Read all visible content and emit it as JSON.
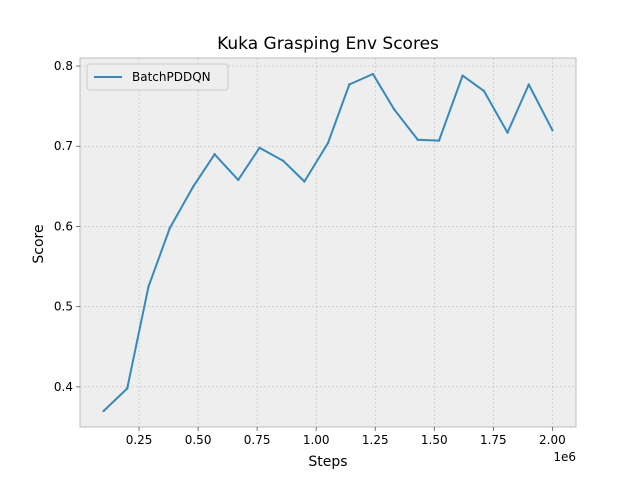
{
  "chart_data": {
    "type": "line",
    "title": "Kuka Grasping Env Scores",
    "xlabel": "Steps",
    "ylabel": "Score",
    "x_offset_label": "1e6",
    "xlim": [
      0.0,
      2.1
    ],
    "ylim": [
      0.35,
      0.81
    ],
    "x_ticks": [
      0.25,
      0.5,
      0.75,
      1.0,
      1.25,
      1.5,
      1.75,
      2.0
    ],
    "x_tick_labels": [
      "0.25",
      "0.50",
      "0.75",
      "1.00",
      "1.25",
      "1.50",
      "1.75",
      "2.00"
    ],
    "y_ticks": [
      0.4,
      0.5,
      0.6,
      0.7,
      0.8
    ],
    "y_tick_labels": [
      "0.4",
      "0.5",
      "0.6",
      "0.7",
      "0.8"
    ],
    "grid": true,
    "legend_position": "upper-left",
    "series": [
      {
        "name": "BatchPDDQN",
        "color": "#348abd",
        "x": [
          0.1,
          0.2,
          0.29,
          0.38,
          0.48,
          0.57,
          0.67,
          0.76,
          0.86,
          0.95,
          1.05,
          1.14,
          1.24,
          1.33,
          1.43,
          1.52,
          1.62,
          1.71,
          1.81,
          1.9,
          2.0
        ],
        "y": [
          0.37,
          0.398,
          0.525,
          0.598,
          0.65,
          0.69,
          0.658,
          0.698,
          0.682,
          0.656,
          0.704,
          0.777,
          0.79,
          0.746,
          0.708,
          0.707,
          0.788,
          0.769,
          0.717,
          0.777,
          0.72
        ]
      }
    ]
  },
  "colors": {
    "plot_background": "#eeeeee",
    "grid": "#b2b2b2",
    "axes_edge": "#bcbcbc"
  }
}
